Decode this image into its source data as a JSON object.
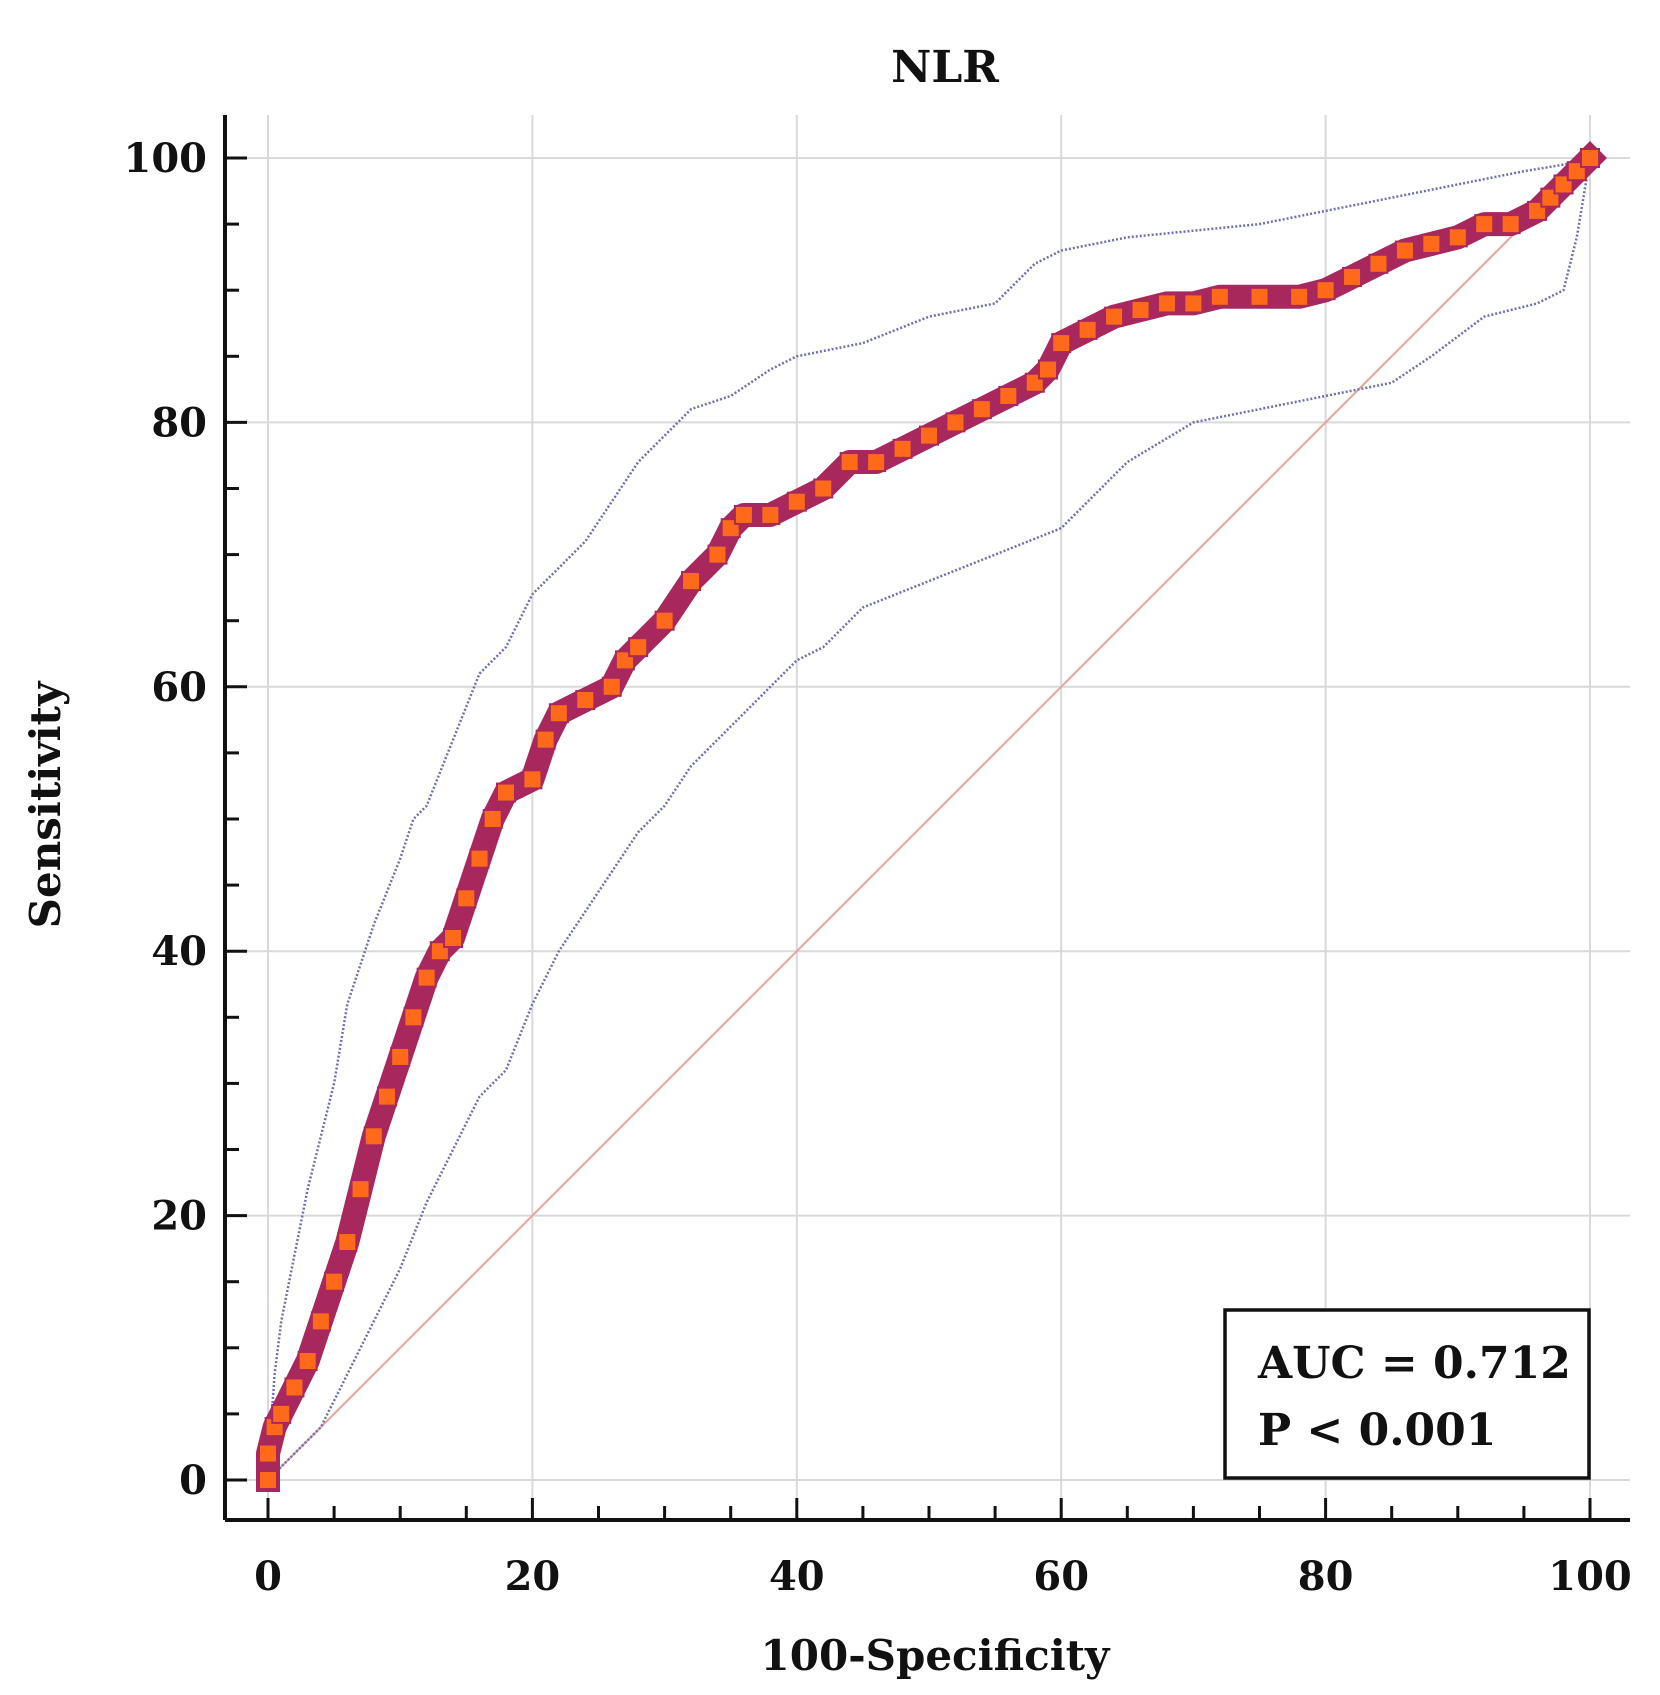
{
  "chart_data": {
    "type": "line",
    "title": "NLR",
    "xlabel": "100-Specificity",
    "ylabel": "Sensitivity",
    "xlim": [
      0,
      100
    ],
    "ylim": [
      0,
      100
    ],
    "xticks": [
      0,
      20,
      40,
      60,
      80,
      100
    ],
    "yticks": [
      0,
      20,
      40,
      60,
      80,
      100
    ],
    "grid": true,
    "annotation": [
      "AUC = 0.712",
      "P < 0.001"
    ],
    "annotation_position": "bottom-right",
    "colors": {
      "roc": "#a8285e",
      "marker": "#ff6a1a",
      "ci": "#6f6fb5",
      "reference": "#e8a59a"
    },
    "series": [
      {
        "style": "roc",
        "x": [
          0,
          0,
          0.5,
          1,
          2,
          3,
          4,
          5,
          6,
          7,
          8,
          9,
          10,
          11,
          12,
          13,
          14,
          15,
          16,
          17,
          18,
          20,
          21,
          22,
          24,
          26,
          27,
          28,
          30,
          32,
          34,
          35,
          36,
          38,
          40,
          42,
          44,
          46,
          48,
          50,
          52,
          54,
          56,
          58,
          59,
          60,
          62,
          64,
          66,
          68,
          70,
          72,
          75,
          78,
          80,
          82,
          84,
          86,
          88,
          90,
          92,
          94,
          96,
          97,
          98,
          99,
          100
        ],
        "y": [
          0,
          2,
          4,
          5,
          7,
          9,
          12,
          15,
          18,
          22,
          26,
          29,
          32,
          35,
          38,
          40,
          41,
          44,
          47,
          50,
          52,
          53,
          56,
          58,
          59,
          60,
          62,
          63,
          65,
          68,
          70,
          72,
          73,
          73,
          74,
          75,
          77,
          77,
          78,
          79,
          80,
          81,
          82,
          83,
          84,
          86,
          87,
          88,
          88.5,
          89,
          89,
          89.5,
          89.5,
          89.5,
          90,
          91,
          92,
          93,
          93.5,
          94,
          95,
          95,
          96,
          97,
          98,
          99,
          100
        ]
      },
      {
        "style": "ci",
        "x": [
          0,
          0.5,
          1,
          2,
          3,
          4,
          5,
          6,
          8,
          10,
          11,
          12,
          14,
          16,
          18,
          20,
          22,
          24,
          26,
          28,
          30,
          32,
          35,
          38,
          40,
          45,
          50,
          55,
          58,
          60,
          65,
          70,
          75,
          80,
          85,
          90,
          95,
          98,
          100
        ],
        "y": [
          1,
          8,
          12,
          17,
          22,
          26,
          30,
          36,
          42,
          47,
          50,
          51,
          56,
          61,
          63,
          67,
          69,
          71,
          74,
          77,
          79,
          81,
          82,
          84,
          85,
          86,
          88,
          89,
          92,
          93,
          94,
          94.5,
          95,
          96,
          97,
          98,
          99,
          99.5,
          100
        ]
      },
      {
        "style": "ci",
        "x": [
          0,
          2,
          4,
          5,
          6,
          8,
          10,
          12,
          14,
          16,
          18,
          20,
          22,
          24,
          26,
          28,
          30,
          32,
          35,
          38,
          40,
          42,
          45,
          50,
          55,
          60,
          62,
          65,
          70,
          75,
          80,
          85,
          88,
          92,
          96,
          98,
          99,
          100
        ],
        "y": [
          0,
          2,
          4,
          6,
          8,
          12,
          16,
          21,
          25,
          29,
          31,
          36,
          40,
          43,
          46,
          49,
          51,
          54,
          57,
          60,
          62,
          63,
          66,
          68,
          70,
          72,
          74,
          77,
          80,
          81,
          82,
          83,
          85,
          88,
          89,
          90,
          94,
          100
        ]
      },
      {
        "style": "reference",
        "x": [
          0,
          100
        ],
        "y": [
          0,
          100
        ]
      }
    ]
  }
}
